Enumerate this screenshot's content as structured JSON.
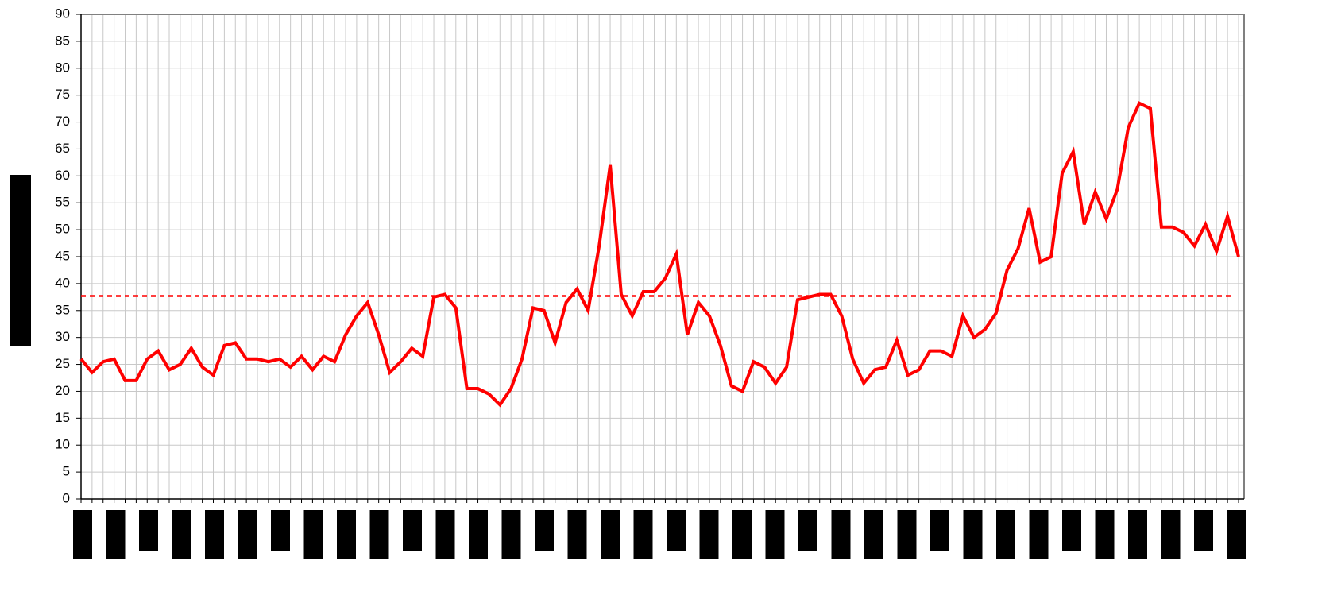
{
  "chart_data": {
    "type": "line",
    "categories": [
      null,
      null,
      null,
      null,
      null,
      null,
      null,
      null,
      null,
      null,
      null,
      null,
      null,
      null,
      null,
      null,
      null,
      null,
      null,
      null,
      null,
      null,
      null,
      null,
      null,
      null,
      null,
      null,
      null,
      null,
      null,
      null,
      null,
      null,
      null,
      null,
      null,
      null,
      null,
      null,
      null,
      null,
      null,
      null,
      null,
      null,
      null,
      null,
      null,
      null,
      null,
      null,
      null,
      null,
      null,
      null,
      null,
      null,
      null,
      null,
      null,
      null,
      null,
      null,
      null,
      null,
      null,
      null,
      null,
      null,
      null,
      null,
      null,
      null,
      null,
      null,
      null,
      null,
      null,
      null,
      null,
      null,
      null,
      null,
      null,
      null,
      null,
      null,
      null,
      null,
      null,
      null,
      null,
      null,
      null,
      null,
      null,
      null,
      null,
      null,
      null,
      null,
      null,
      null,
      null,
      null
    ],
    "series": [
      {
        "color": "#ff0000",
        "values": [
          26,
          23.5,
          25.5,
          26,
          22,
          22,
          26,
          27.5,
          24,
          25,
          28,
          24.5,
          23,
          28.5,
          29,
          26,
          26,
          25.5,
          26,
          24.5,
          26.5,
          24,
          26.5,
          25.5,
          30.5,
          34,
          36.5,
          30.5,
          23.5,
          25.5,
          28,
          26.5,
          37.5,
          38,
          35.5,
          20.5,
          20.5,
          19.5,
          17.5,
          20.5,
          26,
          35.5,
          35,
          29,
          36.5,
          39,
          35,
          47,
          62,
          38,
          34,
          38.5,
          38.5,
          41,
          45.5,
          30.5,
          36.5,
          34,
          28.5,
          21,
          20,
          25.5,
          24.5,
          21.5,
          24.5,
          37,
          37.5,
          38,
          38,
          34,
          26,
          21.5,
          24,
          24.5,
          29.5,
          23,
          24,
          27.5,
          27.5,
          26.5,
          34,
          30,
          31.5,
          34.5,
          42.5,
          46.5,
          54,
          44,
          45,
          60.5,
          64.5,
          51,
          57,
          52,
          57.5,
          69,
          73.5,
          72.5,
          50.5,
          50.5,
          49.5,
          47,
          51,
          46,
          52.5,
          45
        ]
      }
    ],
    "reference_line": {
      "value": 37.7,
      "color": "#ff0000",
      "style": "dashed"
    },
    "ylim": [
      0,
      90
    ],
    "yticks": [
      0,
      5,
      10,
      15,
      20,
      25,
      30,
      35,
      40,
      45,
      50,
      55,
      60,
      65,
      70,
      75,
      80,
      85,
      90
    ],
    "grid": true
  }
}
